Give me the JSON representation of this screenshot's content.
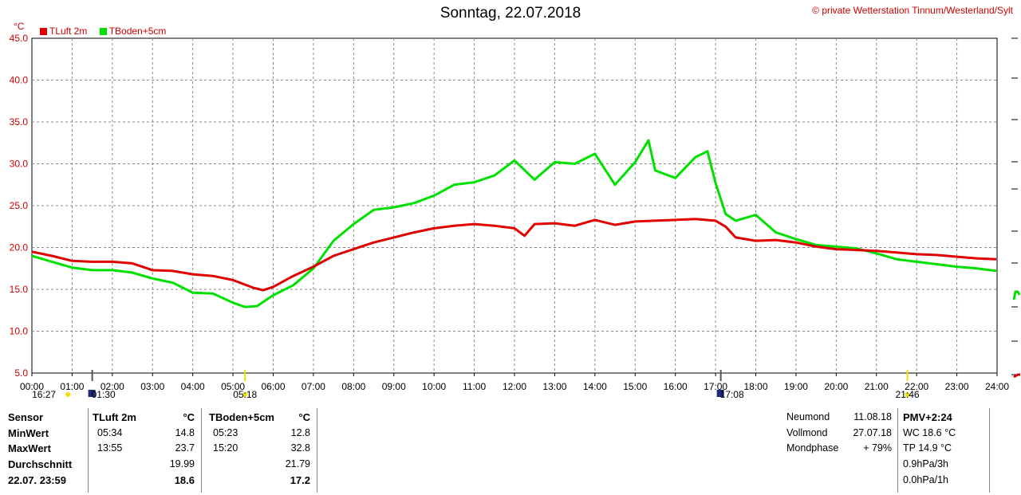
{
  "header": {
    "title": "Sonntag, 22.07.2018",
    "copyright": "© private Wetterstation Tinnum/Westerland/Sylt",
    "y_unit": "°C"
  },
  "chart_data": {
    "type": "line",
    "x_ticks": [
      "00:00",
      "01:00",
      "02:00",
      "03:00",
      "04:00",
      "05:00",
      "06:00",
      "07:00",
      "08:00",
      "09:00",
      "10:00",
      "11:00",
      "12:00",
      "13:00",
      "14:00",
      "15:00",
      "16:00",
      "17:00",
      "18:00",
      "19:00",
      "20:00",
      "21:00",
      "22:00",
      "23:00",
      "24:00"
    ],
    "y_ticks": [
      "5.0",
      "10.0",
      "15.0",
      "20.0",
      "25.0",
      "30.0",
      "35.0",
      "40.0",
      "45.0"
    ],
    "xlim": [
      0,
      24
    ],
    "ylim": [
      5,
      45
    ],
    "grid": true,
    "legend_position": "top-left",
    "series": [
      {
        "name": "TLuft 2m",
        "color": "#e00000",
        "hours": [
          0,
          0.5,
          1,
          1.5,
          2,
          2.5,
          3,
          3.5,
          4,
          4.5,
          5,
          5.5,
          5.75,
          6,
          6.5,
          7,
          7.5,
          8,
          8.5,
          9,
          9.5,
          10,
          10.5,
          11,
          11.5,
          12,
          12.25,
          12.5,
          13,
          13.5,
          14,
          14.5,
          15,
          15.5,
          16,
          16.5,
          17,
          17.25,
          17.5,
          18,
          18.5,
          19,
          19.5,
          20,
          20.5,
          21,
          21.5,
          22,
          22.5,
          23,
          23.5,
          23.98
        ],
        "values": [
          19.5,
          19.0,
          18.4,
          18.3,
          18.3,
          18.1,
          17.3,
          17.2,
          16.8,
          16.6,
          16.1,
          15.2,
          14.9,
          15.3,
          16.6,
          17.7,
          19.0,
          19.8,
          20.6,
          21.2,
          21.8,
          22.3,
          22.6,
          22.8,
          22.6,
          22.3,
          21.4,
          22.8,
          22.9,
          22.6,
          23.3,
          22.7,
          23.1,
          23.2,
          23.3,
          23.4,
          23.2,
          22.5,
          21.2,
          20.8,
          20.9,
          20.6,
          20.1,
          19.8,
          19.7,
          19.6,
          19.4,
          19.2,
          19.1,
          18.9,
          18.7,
          18.6
        ]
      },
      {
        "name": "TBoden+5cm",
        "color": "#00e000",
        "hours": [
          0,
          0.5,
          1,
          1.5,
          2,
          2.5,
          3,
          3.5,
          4,
          4.5,
          5,
          5.3,
          5.6,
          6,
          6.5,
          7,
          7.5,
          8,
          8.5,
          9,
          9.5,
          10,
          10.5,
          11,
          11.5,
          12,
          12.5,
          13,
          13.5,
          14,
          14.5,
          15,
          15.33,
          15.5,
          16,
          16.5,
          16.8,
          17,
          17.25,
          17.5,
          18,
          18.5,
          19,
          19.5,
          20,
          20.5,
          21,
          21.5,
          22,
          22.5,
          23,
          23.5,
          23.98
        ],
        "values": [
          19.0,
          18.3,
          17.6,
          17.3,
          17.3,
          17.0,
          16.3,
          15.8,
          14.6,
          14.5,
          13.4,
          12.9,
          13.0,
          14.3,
          15.5,
          17.5,
          20.8,
          22.8,
          24.5,
          24.8,
          25.3,
          26.2,
          27.5,
          27.8,
          28.6,
          30.4,
          28.1,
          30.2,
          30.0,
          31.2,
          27.5,
          30.2,
          32.8,
          29.2,
          28.3,
          30.8,
          31.5,
          27.7,
          24.0,
          23.2,
          23.9,
          21.8,
          21.0,
          20.3,
          20.1,
          19.9,
          19.3,
          18.6,
          18.3,
          18.0,
          17.7,
          17.5,
          17.2
        ]
      }
    ],
    "markers": [
      {
        "label": "16:27",
        "symbol": "moon",
        "hour": 0.2
      },
      {
        "label": "01:30",
        "symbol": "moonrise",
        "hour": 1.5
      },
      {
        "label": "05:18",
        "symbol": "sunrise",
        "hour": 5.3
      },
      {
        "label": "17:08",
        "symbol": "moonset",
        "hour": 17.13
      },
      {
        "label": "21:46",
        "symbol": "sunset",
        "hour": 21.77
      }
    ]
  },
  "stats": {
    "labels": {
      "sensor": "Sensor",
      "min": "MinWert",
      "max": "MaxWert",
      "avg": "Durchschnitt",
      "last": "22.07. 23:59"
    },
    "tluft": {
      "header": "TLuft 2m",
      "unit": "°C",
      "min_time": "05:34",
      "min_val": "14.8",
      "max_time": "13:55",
      "max_val": "23.7",
      "avg": "19.99",
      "last": "18.6"
    },
    "tboden": {
      "header": "TBoden+5cm",
      "unit": "°C",
      "min_time": "05:23",
      "min_val": "12.8",
      "max_time": "15:20",
      "max_val": "32.8",
      "avg": "21.79",
      "last": "17.2"
    },
    "moon": {
      "neumond_label": "Neumond",
      "neumond_date": "11.08.18",
      "vollmond_label": "Vollmond",
      "vollmond_date": "27.07.18",
      "phase_label": "Mondphase",
      "phase_val": "+ 79%"
    },
    "extra": {
      "pmv": "PMV+2:24",
      "wc": "WC 18.6 °C",
      "tp": "TP 14.9 °C",
      "p3h": "0.9hPa/3h",
      "p1h": "0.0hPa/1h"
    }
  }
}
